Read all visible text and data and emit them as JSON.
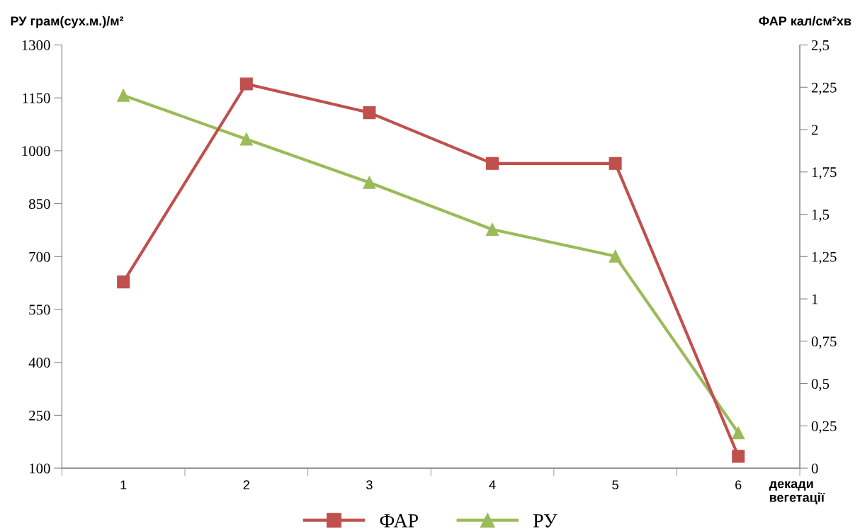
{
  "chart_data": {
    "type": "line",
    "categories": [
      "1",
      "2",
      "3",
      "4",
      "5",
      "6"
    ],
    "xlabel": "декади\nвегетації",
    "ylabel": "РУ грам(сух.м.)/м²",
    "y2label": "ФАР кал/см²хв",
    "ylim": [
      100,
      1300
    ],
    "yticks": [
      100,
      250,
      400,
      550,
      700,
      850,
      1000,
      1150,
      1300
    ],
    "y2lim": [
      0,
      2.5
    ],
    "y2ticks": [
      0,
      {
        "value": 0.25,
        "label": "0,25"
      },
      {
        "value": 0.5,
        "label": "0,5"
      },
      {
        "value": 0.75,
        "label": "0,75"
      },
      1,
      {
        "value": 1.25,
        "label": "1,25"
      },
      {
        "value": 1.5,
        "label": "1,5"
      },
      {
        "value": 1.75,
        "label": "1,75"
      },
      2,
      {
        "value": 2.25,
        "label": "2,25"
      },
      {
        "value": 2.5,
        "label": "2,5"
      }
    ],
    "series": [
      {
        "name": "ФАР",
        "color": "#c0504d",
        "axis": "y2",
        "marker": "square",
        "values": [
          1.1,
          2.27,
          2.1,
          1.8,
          1.8,
          0.07
        ]
      },
      {
        "name": "РУ",
        "color": "#9bbb59",
        "axis": "y",
        "marker": "triangle",
        "values": [
          1157,
          1033,
          910,
          777,
          701,
          200
        ]
      }
    ],
    "legend": "bottom",
    "grid": false,
    "line_style": "solid"
  }
}
